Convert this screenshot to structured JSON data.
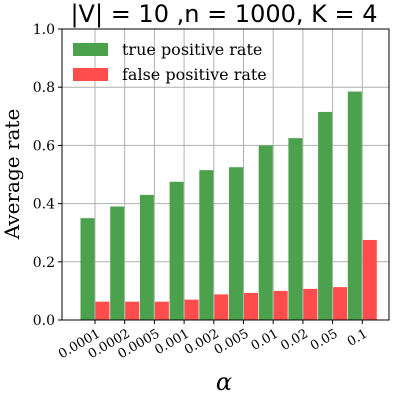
{
  "chart_data": {
    "type": "bar",
    "title": "|V| = 10 ,n = 1000, K = 4",
    "xlabel": "α",
    "ylabel": "Average rate",
    "ylim": [
      0,
      1.0
    ],
    "yticks": [
      "0.0",
      "0.2",
      "0.4",
      "0.6",
      "0.8",
      "1.0"
    ],
    "categories": [
      "0.0001",
      "0.0002",
      "0.0005",
      "0.001",
      "0.002",
      "0.005",
      "0.01",
      "0.02",
      "0.05",
      "0.1"
    ],
    "series": [
      {
        "name": "true positive rate",
        "color": "#4ca24c",
        "values": [
          0.35,
          0.39,
          0.43,
          0.475,
          0.515,
          0.525,
          0.6,
          0.625,
          0.715,
          0.785
        ]
      },
      {
        "name": "false positive rate",
        "color": "#ff4d4d",
        "values": [
          0.063,
          0.063,
          0.063,
          0.07,
          0.088,
          0.093,
          0.1,
          0.107,
          0.113,
          0.275
        ]
      }
    ],
    "grid": true,
    "legend_position": "top-left"
  }
}
